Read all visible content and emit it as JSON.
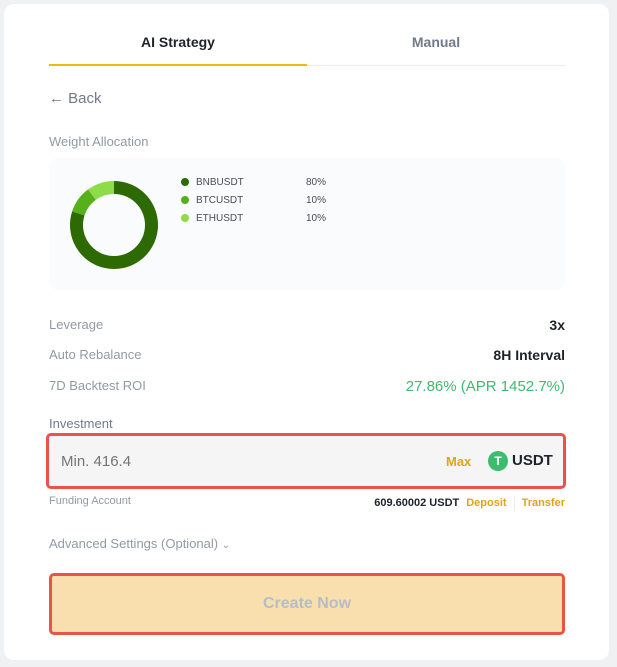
{
  "tabs": [
    {
      "label": "AI Strategy",
      "active": true
    },
    {
      "label": "Manual",
      "active": false
    }
  ],
  "back_label": "Back",
  "weight_allocation": {
    "title": "Weight Allocation",
    "items": [
      {
        "symbol": "BNBUSDT",
        "percent": "80%",
        "value": 80,
        "color": "#2d6a04"
      },
      {
        "symbol": "BTCUSDT",
        "percent": "10%",
        "value": 10,
        "color": "#56b01a"
      },
      {
        "symbol": "ETHUSDT",
        "percent": "10%",
        "value": 10,
        "color": "#8fdc4a"
      }
    ]
  },
  "params": [
    {
      "label": "Leverage",
      "value": "3x"
    },
    {
      "label": "Auto Rebalance",
      "value": "8H Interval"
    },
    {
      "label": "7D Backtest ROI",
      "value": "27.86% (APR 1452.7%)",
      "color": "#3dbb6f"
    }
  ],
  "investment": {
    "label": "Investment",
    "placeholder": "Min. 416.4",
    "max_label": "Max",
    "currency": "USDT"
  },
  "funding": {
    "label": "Funding Account",
    "balance": "609.60002 USDT",
    "deposit": "Deposit",
    "transfer": "Transfer"
  },
  "advanced_label": "Advanced Settings (Optional)",
  "create_label": "Create Now",
  "colors": {
    "accent": "#f0b90b",
    "link": "#dca51a",
    "highlight": "#e8544a",
    "button_bg": "#f8dfad"
  }
}
